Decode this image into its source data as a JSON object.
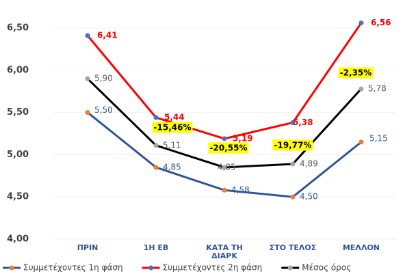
{
  "chart_data": {
    "type": "line",
    "categories": [
      "ΠΡΙΝ",
      "1Η ΕΒ",
      "ΚΑΤΑ ΤΗ ΔΙΑΡΚ",
      "ΣΤΟ ΤΕΛΟΣ",
      "ΜΕΛΛΟΝ"
    ],
    "series": [
      {
        "name": "Συμμετέχοντες 1η φάση",
        "color": "#2e5597",
        "marker_color": "#ed7d31",
        "values": [
          5.5,
          4.85,
          4.58,
          4.5,
          5.15
        ],
        "value_labels": [
          "5,50",
          "4,85",
          "4,58",
          "4,50",
          "5,15"
        ]
      },
      {
        "name": "Συμμετέχοντες 2η φάση",
        "color": "#ff0000",
        "marker_color": "#4472c4",
        "values": [
          6.41,
          5.44,
          5.19,
          5.38,
          6.56
        ],
        "value_labels": [
          "6,41",
          "5,44",
          "5,19",
          "5,38",
          "6,56"
        ]
      },
      {
        "name": "Μέσος όρος",
        "color": "#000000",
        "marker_color": "#a5a5a5",
        "values": [
          5.9,
          5.11,
          4.85,
          4.89,
          5.78
        ],
        "value_labels": [
          "5,90",
          "5,11",
          "4,85",
          "4,89",
          "5,78"
        ]
      }
    ],
    "annotations": [
      "-15,46%",
      "-20,55%",
      "-19,77%",
      "-2,35%"
    ],
    "ylim": [
      4.0,
      6.5
    ],
    "yticks": [
      {
        "value": 4.0,
        "label": "4,00"
      },
      {
        "value": 4.5,
        "label": "4,50"
      },
      {
        "value": 5.0,
        "label": "5,00"
      },
      {
        "value": 5.5,
        "label": "5,50"
      },
      {
        "value": 6.0,
        "label": "6,00"
      },
      {
        "value": 6.5,
        "label": "6,50"
      }
    ],
    "grid": true,
    "legend": "bottom"
  }
}
